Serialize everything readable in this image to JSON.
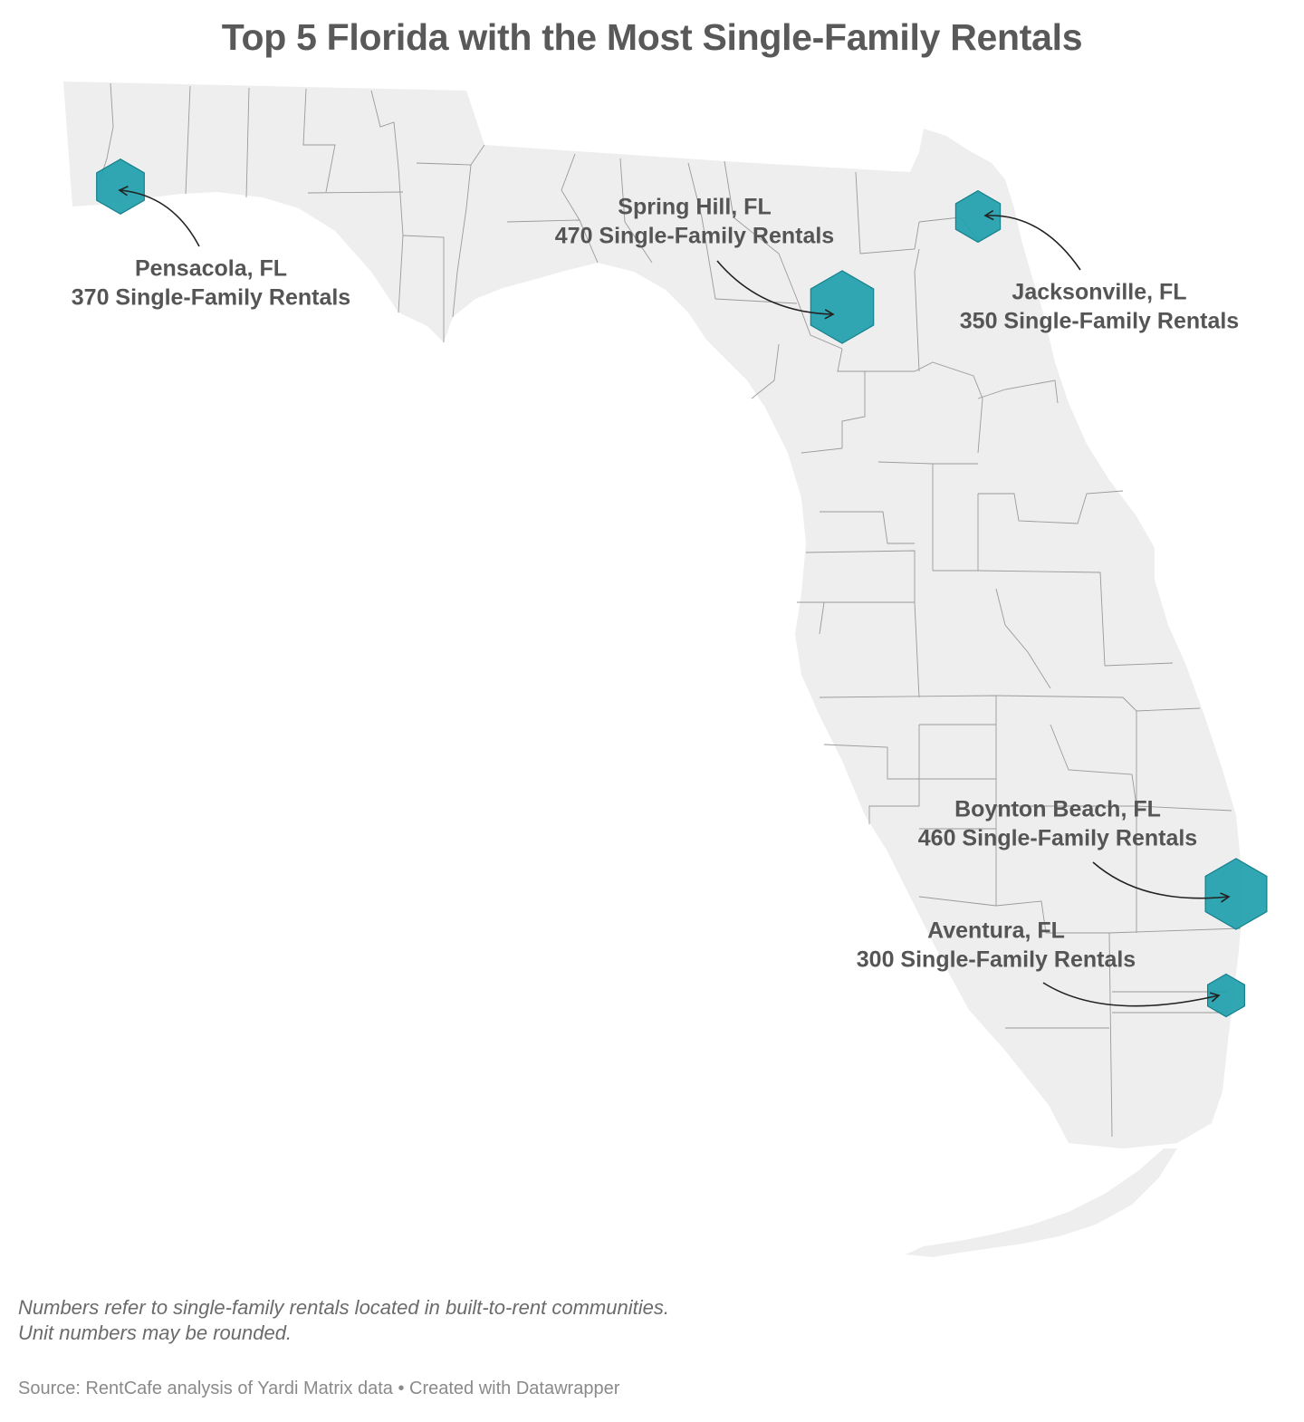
{
  "title": "Top 5 Florida with the Most Single-Family Rentals",
  "colors": {
    "land": "#eeeeee",
    "county_border": "#9a9a9a",
    "marker": "#1f9fad",
    "marker_stroke": "#16808c",
    "label": "#555555",
    "arrow": "#222222"
  },
  "markers": [
    {
      "id": "pensacola",
      "name": "Pensacola, FL",
      "value": 370,
      "value_label": "370 Single-Family Rentals"
    },
    {
      "id": "spring-hill",
      "name": "Spring Hill, FL",
      "value": 470,
      "value_label": "470 Single-Family Rentals"
    },
    {
      "id": "jacksonville",
      "name": "Jacksonville, FL",
      "value": 350,
      "value_label": "350 Single-Family Rentals"
    },
    {
      "id": "boynton-beach",
      "name": "Boynton Beach, FL",
      "value": 460,
      "value_label": "460 Single-Family Rentals"
    },
    {
      "id": "aventura",
      "name": "Aventura, FL",
      "value": 300,
      "value_label": "300 Single-Family Rentals"
    }
  ],
  "notes": [
    "Numbers refer to single-family rentals located in built-to-rent communities.",
    "Unit numbers may be rounded."
  ],
  "source": "Source: RentCafe analysis of Yardi Matrix data • Created with Datawrapper"
}
